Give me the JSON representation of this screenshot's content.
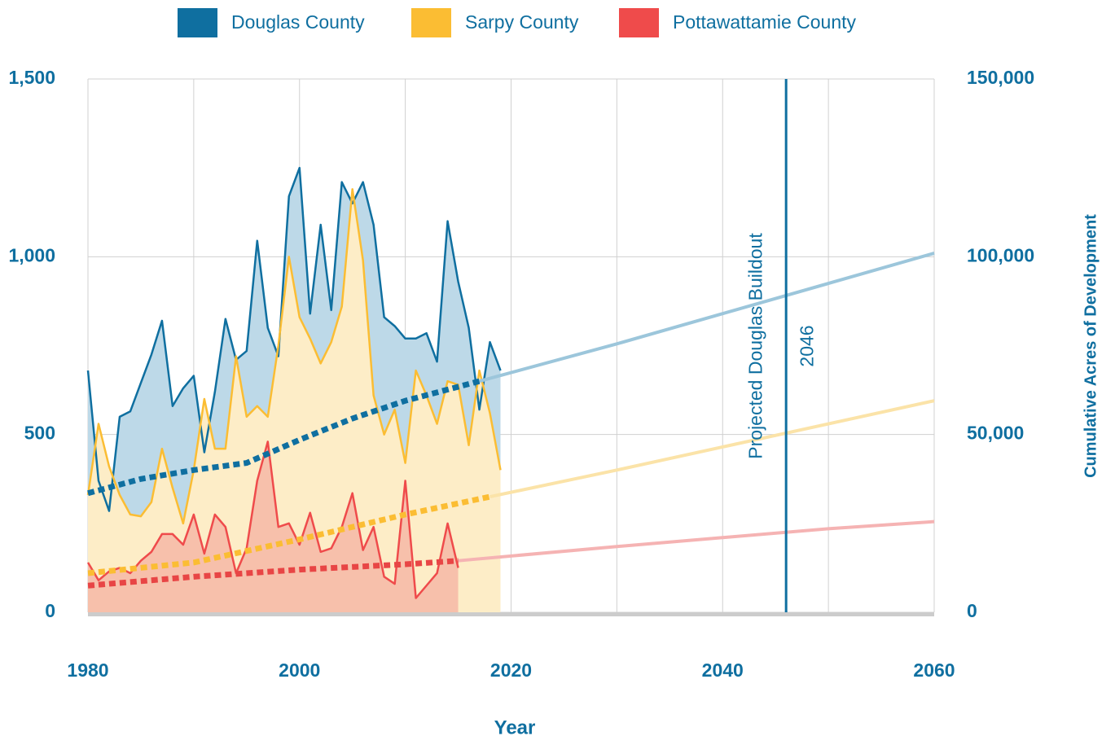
{
  "chart_data": {
    "type": "area",
    "x": [
      1980,
      1981,
      1982,
      1983,
      1984,
      1985,
      1986,
      1987,
      1988,
      1989,
      1990,
      1991,
      1992,
      1993,
      1994,
      1995,
      1996,
      1997,
      1998,
      1999,
      2000,
      2001,
      2002,
      2003,
      2004,
      2005,
      2006,
      2007,
      2008,
      2009,
      2010,
      2011,
      2012,
      2013,
      2014,
      2015,
      2016,
      2017,
      2018,
      2019
    ],
    "series": [
      {
        "name": "Douglas County",
        "color": "#0f6fa0",
        "fill": "#bdd9e8",
        "trend_color": "#0f6fa0",
        "projection_color": "#9cc6db",
        "values": [
          680,
          370,
          285,
          550,
          565,
          645,
          725,
          820,
          580,
          630,
          665,
          450,
          620,
          825,
          710,
          735,
          1045,
          800,
          720,
          1170,
          1250,
          840,
          1090,
          850,
          1210,
          1150,
          1210,
          1090,
          830,
          805,
          770,
          770,
          785,
          705,
          1100,
          930,
          800,
          570,
          760,
          680
        ],
        "trend_x": [
          1980,
          1985,
          1990,
          1995,
          2000,
          2005,
          2010,
          2017
        ],
        "trend": [
          33500,
          37500,
          40000,
          42000,
          48500,
          54500,
          59500,
          65000
        ],
        "projection_x": [
          2017,
          2030,
          2040,
          2050,
          2060
        ],
        "projection": [
          65000,
          75500,
          84000,
          92500,
          101000
        ]
      },
      {
        "name": "Sarpy County",
        "color": "#fbbd33",
        "fill": "#fdedc7",
        "trend_color": "#fbbd33",
        "projection_color": "#fbe3a8",
        "values": [
          330,
          530,
          410,
          330,
          275,
          270,
          310,
          460,
          350,
          250,
          400,
          600,
          460,
          460,
          720,
          550,
          580,
          550,
          750,
          1000,
          830,
          770,
          700,
          760,
          860,
          1190,
          990,
          610,
          500,
          570,
          420,
          680,
          610,
          530,
          650,
          640,
          470,
          680,
          560,
          400
        ],
        "trend_x": [
          1980,
          1990,
          2000,
          2010,
          2018
        ],
        "trend": [
          11000,
          14000,
          20500,
          27500,
          32500
        ],
        "projection_x": [
          2018,
          2030,
          2040,
          2050,
          2060
        ],
        "projection": [
          32500,
          40000,
          46500,
          53000,
          59500
        ]
      },
      {
        "name": "Pottawattamie County",
        "color": "#ef4b4b",
        "fill": "#f7c0ab",
        "trend_color": "#e84545",
        "projection_color": "#f5b3b3",
        "values": [
          140,
          90,
          115,
          125,
          110,
          145,
          170,
          220,
          220,
          190,
          275,
          165,
          275,
          240,
          110,
          180,
          370,
          480,
          240,
          250,
          190,
          280,
          170,
          180,
          240,
          335,
          175,
          240,
          100,
          80,
          370,
          40,
          75,
          110,
          250,
          125,
          null,
          null,
          null,
          null
        ],
        "trend_x": [
          1980,
          1990,
          2000,
          2010,
          2015
        ],
        "trend": [
          7500,
          10000,
          12000,
          13500,
          14500
        ],
        "projection_x": [
          2015,
          2030,
          2040,
          2050,
          2060
        ],
        "projection": [
          14500,
          18500,
          21000,
          23500,
          25500
        ]
      }
    ],
    "xlim": [
      1980,
      2060
    ],
    "xticks": [
      1980,
      2000,
      2020,
      2040,
      2060
    ],
    "x_minor_ticks": [
      1990,
      2010,
      2030,
      2050
    ],
    "x_label": "Year",
    "ylim": [
      0,
      1500
    ],
    "yticks": [
      0,
      500,
      {
        "value": 1000,
        "label": "1,000"
      },
      {
        "value": 1500,
        "label": "1,500"
      }
    ],
    "y2lim": [
      0,
      150000
    ],
    "y2ticks": [
      0,
      {
        "value": 50000,
        "label": "50,000"
      },
      {
        "value": 100000,
        "label": "100,000"
      },
      {
        "value": 150000,
        "label": "150,000"
      }
    ],
    "y2_label": "Cumulative Acres of Development",
    "annotation": {
      "x": 2046,
      "text": "Projected Douglas Buildout"
    },
    "grid": true
  }
}
